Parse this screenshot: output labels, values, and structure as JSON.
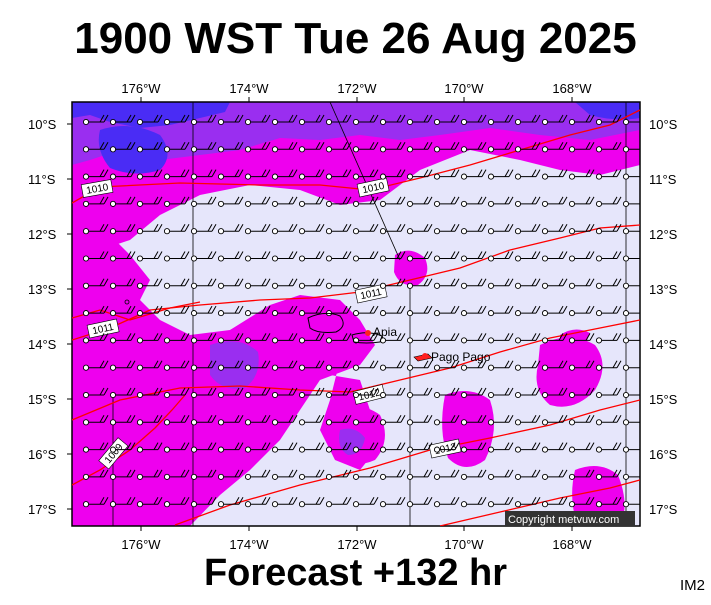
{
  "title": "1900 WST Tue 26 Aug 2025",
  "footer": "Forecast +132 hr",
  "corner_tag": "IM2",
  "copyright": "Copyright metvuw.com",
  "lon_labels": [
    "176°W",
    "174°W",
    "172°W",
    "170°W",
    "168°W"
  ],
  "lat_labels": [
    "10°S",
    "11°S",
    "12°S",
    "13°S",
    "14°S",
    "15°S",
    "16°S",
    "17°S"
  ],
  "places": [
    {
      "name": "Apia"
    },
    {
      "name": "Pago Pago"
    }
  ],
  "isobars": [
    {
      "label": "1010"
    },
    {
      "label": "1010"
    },
    {
      "label": "1011"
    },
    {
      "label": "1011"
    },
    {
      "label": "1012"
    },
    {
      "label": "1013"
    },
    {
      "label": "1009"
    }
  ],
  "colors": {
    "background_light": "#e6e6fb",
    "precip_magenta": "#ee00ee",
    "precip_purple": "#9a2ef0",
    "precip_blue": "#4a2cf5",
    "isobar_red": "#ff0000",
    "island_red": "#ff2020"
  }
}
